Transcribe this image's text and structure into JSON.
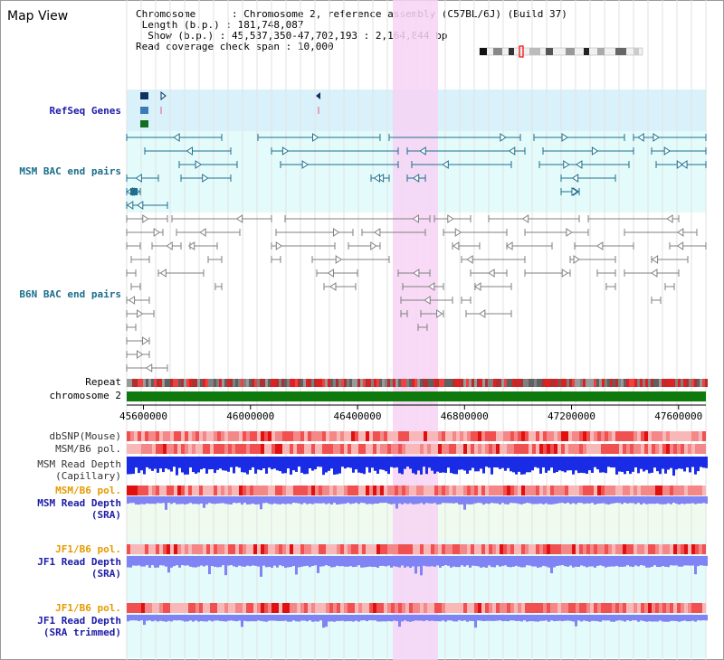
{
  "header": {
    "title": "Map View",
    "chromosome_label": "Chromosome",
    "chromosome_value": "Chromosome 2, reference assembly (C57BL/6J) (Build 37)",
    "length_label": "Length (b.p.)",
    "length_value": "181,748,087",
    "show_label": "Show (b.p.)",
    "show_value": "45,537,350-47,702,193 : 2,164,844 bp",
    "span_label": "Read coverage check span",
    "span_value": "10,000"
  },
  "tracks": {
    "refseq": "RefSeq Genes",
    "msm_bac": "MSM BAC end pairs",
    "b6n_bac": "B6N BAC end pairs",
    "repeat": "Repeat",
    "chromosome": "chromosome 2",
    "dbsnp": "dbSNP(Mouse)",
    "msm_b6_pol": "MSM/B6 pol.",
    "msm_depth_cap_1": "MSM Read Depth",
    "msm_depth_cap_2": "(Capillary)",
    "msm_b6_pol_2": "MSM/B6 pol.",
    "msm_depth_sra_1": "MSM Read Depth",
    "msm_depth_sra_2": "(SRA)",
    "jf1_b6_pol": "JF1/B6 pol.",
    "jf1_depth_1": "JF1 Read Depth",
    "jf1_depth_2": "(SRA)",
    "jf1_b6_pol_2": "JF1/B6 pol.",
    "jf1_trim_1": "JF1 Read Depth",
    "jf1_trim_2": "(SRA trimmed)"
  },
  "axis": {
    "start_bp": 45537350,
    "end_bp": 47702193,
    "ticks": [
      "45600000",
      "46000000",
      "46400000",
      "46800000",
      "47200000",
      "47600000"
    ]
  },
  "colors": {
    "refseq_bg": "#d9f1fb",
    "msm_bg": "#e4fbfb",
    "highlight": "#f7d4f4",
    "msm_feature": "#1e6e8c",
    "b6n_feature": "#808080",
    "chromosome_bar": "#0e7a0e",
    "depth_blue": "#1a2be6",
    "depth_light": "#7f83f4",
    "polymorphism": "#f08080",
    "label_blue": "#1c1ca8",
    "label_teal": "#1a6e8c",
    "label_orange": "#e69a00"
  }
}
